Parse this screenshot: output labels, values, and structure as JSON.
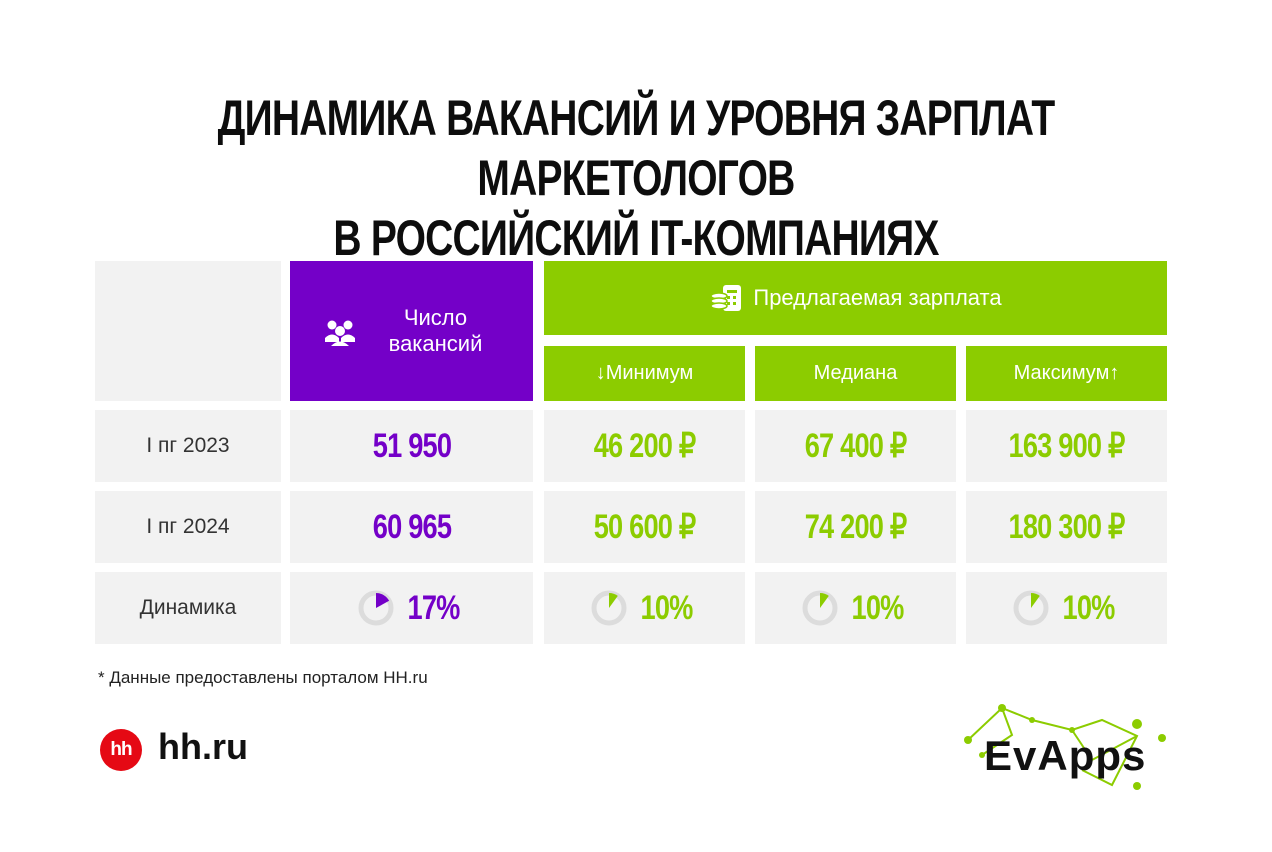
{
  "title": {
    "line1": "Динамика вакансий и уровня зарплат маркетологов",
    "line2": "в российский IT-компаниях"
  },
  "table": {
    "header": {
      "vacancies_label": "Число вакансий",
      "salary_label": "Предлагаемая зарплата",
      "min_label": "↓Минимум",
      "median_label": "Медиана",
      "max_label": "Максимум↑"
    },
    "rows": [
      {
        "label": "I пг 2023",
        "vacancies": "51 950",
        "min": "46 200 ₽",
        "median": "67 400 ₽",
        "max": "163 900 ₽"
      },
      {
        "label": "I пг 2024",
        "vacancies": "60 965",
        "min": "50 600 ₽",
        "median": "74 200 ₽",
        "max": "180 300 ₽"
      }
    ],
    "dynamics": {
      "label": "Динамика",
      "vacancies": "17%",
      "min": "10%",
      "median": "10%",
      "max": "10%",
      "vacancies_fraction": 0.17,
      "salary_fraction": 0.1
    }
  },
  "footnote": "* Данные предоставлены порталом HH.ru",
  "brand": {
    "hh_logo_text": "hh",
    "hh_text": "hh.ru",
    "evapps_text": "EvApps"
  },
  "colors": {
    "purple": "#7400c8",
    "green": "#8ccc00",
    "gray": "#f2f2f2",
    "hh_red": "#e50914"
  }
}
